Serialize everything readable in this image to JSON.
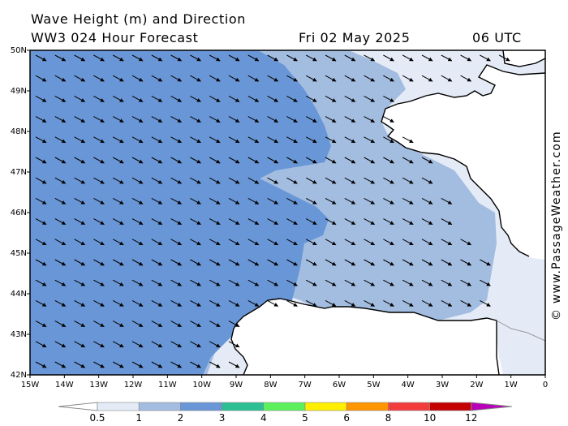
{
  "title": {
    "line1": "Wave Height (m) and Direction",
    "line2_left": "WW3 024 Hour Forecast",
    "date": "Fri 02 May 2025",
    "time": "06 UTC"
  },
  "credit": "© www.PassageWeather.com",
  "map": {
    "lon_range": [
      -15,
      0
    ],
    "lat_range": [
      42,
      50
    ],
    "lon_ticks": [
      "15W",
      "14W",
      "13W",
      "12W",
      "11W",
      "10W",
      "9W",
      "8W",
      "7W",
      "6W",
      "5W",
      "4W",
      "3W",
      "2W",
      "1W",
      "0"
    ],
    "lat_ticks": [
      "42N",
      "43N",
      "44N",
      "45N",
      "46N",
      "47N",
      "48N",
      "49N",
      "50N"
    ],
    "arrow_direction": "southeast",
    "colors": {
      "sea_low": "#e4ebf6",
      "sea_mid": "#a3bde1",
      "sea_high": "#6996d6",
      "land": "#ffffff",
      "coast": "#000000",
      "border": "#999999"
    }
  },
  "legend": {
    "labels": [
      "0.5",
      "1",
      "2",
      "3",
      "4",
      "5",
      "6",
      "8",
      "10",
      "12"
    ],
    "colors": [
      "#e4ebf6",
      "#a3bde1",
      "#6996d6",
      "#2bbf93",
      "#5cf05c",
      "#ffee00",
      "#ff9500",
      "#f33c3c",
      "#c40000",
      "#b700b7"
    ]
  }
}
